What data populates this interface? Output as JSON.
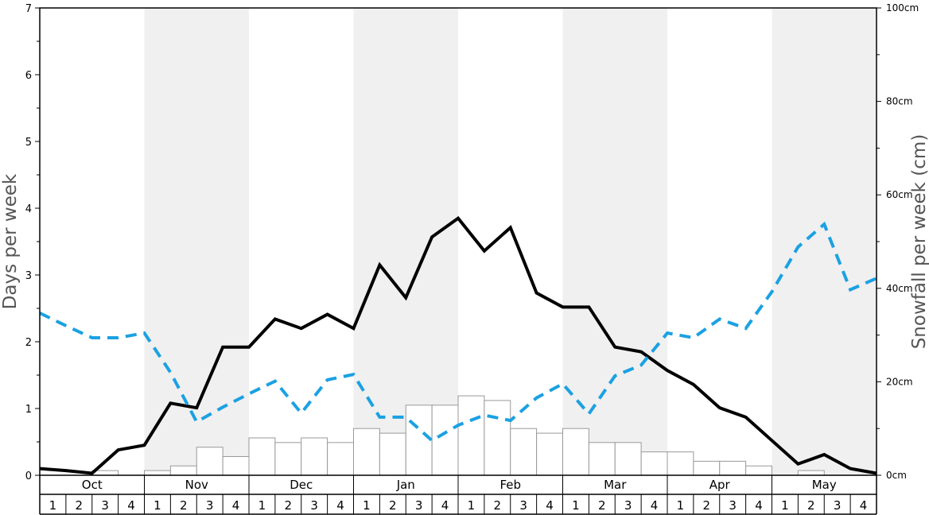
{
  "chart_data": {
    "type": "line",
    "xlabel": "",
    "ylabel": "Days per week",
    "ylabel_right": "Snowfall per week (cm)",
    "ylim": [
      0,
      7
    ],
    "ylim_right": [
      0,
      100
    ],
    "y_ticks": [
      "0",
      "1",
      "2",
      "3",
      "4",
      "5",
      "6",
      "7"
    ],
    "y_right_ticks": [
      "0cm",
      "20cm",
      "40cm",
      "60cm",
      "80cm",
      "100cm"
    ],
    "months": [
      "Oct",
      "Nov",
      "Dec",
      "Jan",
      "Feb",
      "Mar",
      "Apr",
      "May"
    ],
    "weeks": [
      "1",
      "2",
      "3",
      "4"
    ],
    "grid": false,
    "month_shading": "alternating",
    "colors": {
      "solid_line": "#000000",
      "dashed_line": "#1ba1e2",
      "bars_fill": "#ffffff",
      "bars_stroke": "#999999",
      "shade": "#f0f0f0"
    },
    "series": [
      {
        "style": "solid",
        "values": [
          0.1,
          0.07,
          0.03,
          0.38,
          0.45,
          1.08,
          1.01,
          1.92,
          1.92,
          2.34,
          2.2,
          2.41,
          2.2,
          3.15,
          2.66,
          3.57,
          3.85,
          3.36,
          3.71,
          2.73,
          2.52,
          2.52,
          1.92,
          1.85,
          1.57,
          1.36,
          1.01,
          0.87,
          0.52,
          0.17,
          0.31,
          0.1,
          0.03
        ]
      },
      {
        "style": "dashed",
        "values": [
          2.43,
          2.24,
          2.06,
          2.06,
          2.13,
          1.54,
          0.8,
          1.02,
          1.22,
          1.41,
          0.93,
          1.43,
          1.51,
          0.87,
          0.87,
          0.52,
          0.75,
          0.9,
          0.82,
          1.16,
          1.37,
          0.92,
          1.49,
          1.65,
          2.13,
          2.06,
          2.34,
          2.2,
          2.75,
          3.42,
          3.76,
          2.78,
          2.95
        ]
      },
      {
        "style": "bars",
        "axis": "right",
        "values": [
          0,
          0,
          1,
          0,
          1,
          2,
          6,
          4,
          8,
          7,
          8,
          7,
          10,
          9,
          15,
          15,
          17,
          16,
          10,
          9,
          10,
          7,
          7,
          5,
          5,
          3,
          3,
          2,
          0,
          1,
          0,
          0
        ]
      }
    ]
  }
}
